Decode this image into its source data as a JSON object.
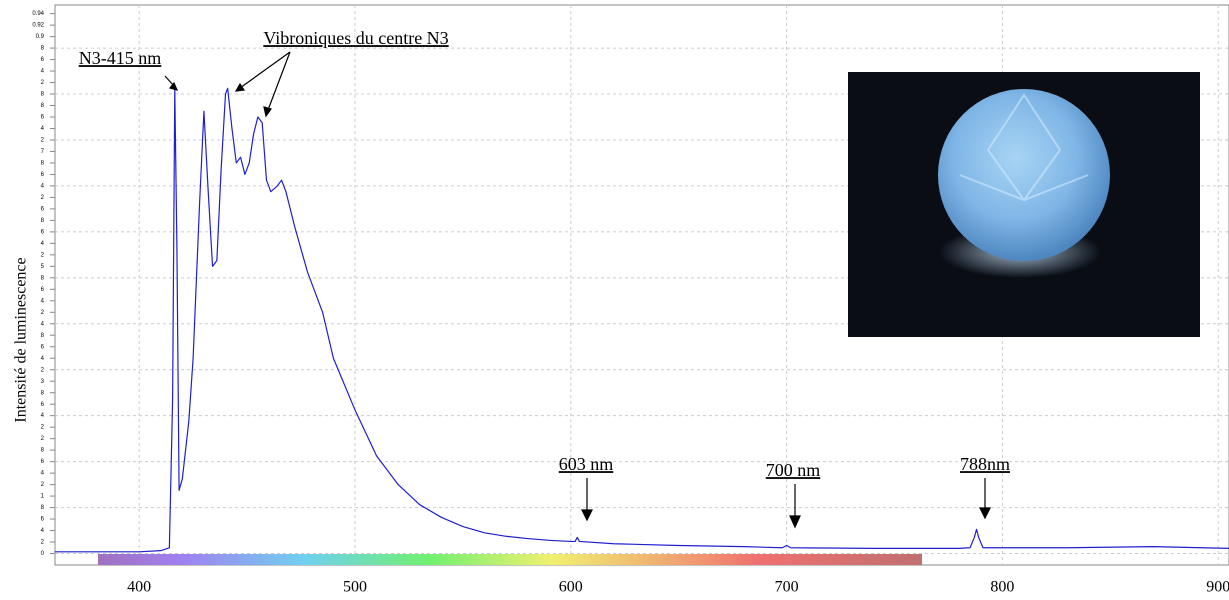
{
  "chart_data": {
    "type": "line",
    "y_label": "Intensité de luminescence",
    "x": [
      361,
      400,
      410,
      414,
      415.5,
      416.5,
      417.5,
      418.5,
      420,
      423,
      425,
      428,
      430,
      432,
      434,
      436,
      438,
      440,
      441,
      443,
      445,
      447,
      449,
      451,
      453,
      455,
      457,
      459,
      461,
      464,
      466,
      468,
      472,
      478,
      485,
      490,
      500,
      510,
      520,
      530,
      540,
      550,
      560,
      570,
      580,
      590,
      600,
      602,
      603,
      604,
      620,
      650,
      680,
      698,
      700,
      702,
      740,
      780,
      785,
      787,
      788,
      789,
      791,
      830,
      870,
      905
    ],
    "values": [
      0.003,
      0.003,
      0.005,
      0.01,
      0.27,
      0.81,
      0.53,
      0.11,
      0.13,
      0.23,
      0.34,
      0.61,
      0.77,
      0.63,
      0.5,
      0.51,
      0.67,
      0.8,
      0.81,
      0.74,
      0.68,
      0.69,
      0.66,
      0.68,
      0.73,
      0.76,
      0.75,
      0.65,
      0.63,
      0.64,
      0.65,
      0.63,
      0.57,
      0.49,
      0.42,
      0.34,
      0.25,
      0.17,
      0.12,
      0.085,
      0.063,
      0.047,
      0.036,
      0.03,
      0.026,
      0.023,
      0.021,
      0.021,
      0.028,
      0.021,
      0.017,
      0.014,
      0.012,
      0.01,
      0.014,
      0.01,
      0.009,
      0.009,
      0.01,
      0.028,
      0.042,
      0.028,
      0.01,
      0.01,
      0.012,
      0.009
    ],
    "color": "#1f1fd0",
    "xlim": [
      361,
      905
    ],
    "xticks": [
      400,
      500,
      600,
      700,
      800,
      900
    ],
    "ylim": [
      -0.02,
      0.955
    ],
    "yticks": [
      0,
      {
        "value": 0.02,
        "label": "2"
      },
      {
        "value": 0.04,
        "label": "4"
      },
      {
        "value": 0.06,
        "label": "6"
      },
      {
        "value": 0.08,
        "label": "8"
      },
      {
        "value": 0.1,
        "label": "1"
      },
      {
        "value": 0.12,
        "label": "2"
      },
      {
        "value": 0.14,
        "label": "4"
      },
      {
        "value": 0.16,
        "label": "6"
      },
      {
        "value": 0.18,
        "label": "8"
      },
      {
        "value": 0.2,
        "label": "2"
      },
      {
        "value": 0.22,
        "label": "2"
      },
      {
        "value": 0.24,
        "label": "4"
      },
      {
        "value": 0.26,
        "label": "6"
      },
      {
        "value": 0.28,
        "label": "8"
      },
      {
        "value": 0.3,
        "label": "3"
      },
      {
        "value": 0.32,
        "label": "2"
      },
      {
        "value": 0.34,
        "label": "4"
      },
      {
        "value": 0.36,
        "label": "6"
      },
      {
        "value": 0.38,
        "label": "8"
      },
      {
        "value": 0.4,
        "label": "4"
      },
      {
        "value": 0.42,
        "label": "2"
      },
      {
        "value": 0.44,
        "label": "4"
      },
      {
        "value": 0.46,
        "label": "6"
      },
      {
        "value": 0.48,
        "label": "8"
      },
      {
        "value": 0.5,
        "label": "5"
      },
      {
        "value": 0.52,
        "label": "2"
      },
      {
        "value": 0.54,
        "label": "4"
      },
      {
        "value": 0.56,
        "label": "6"
      },
      {
        "value": 0.58,
        "label": "8"
      },
      {
        "value": 0.6,
        "label": "6"
      },
      {
        "value": 0.62,
        "label": "2"
      },
      {
        "value": 0.64,
        "label": "4"
      },
      {
        "value": 0.66,
        "label": "6"
      },
      {
        "value": 0.68,
        "label": "8"
      },
      {
        "value": 0.7,
        "label": "7"
      },
      {
        "value": 0.72,
        "label": "2"
      },
      {
        "value": 0.74,
        "label": "4"
      },
      {
        "value": 0.76,
        "label": "6"
      },
      {
        "value": 0.78,
        "label": "8"
      },
      {
        "value": 0.8,
        "label": "8"
      },
      {
        "value": 0.82,
        "label": "2"
      },
      {
        "value": 0.84,
        "label": "4"
      },
      {
        "value": 0.86,
        "label": "6"
      },
      {
        "value": 0.88,
        "label": "8"
      },
      0.9,
      0.92,
      0.94
    ],
    "grid": true,
    "annotations": [
      "N3-415 nm",
      "Vibroniques du centre N3",
      "603 nm",
      "700 nm",
      "788nm"
    ]
  }
}
